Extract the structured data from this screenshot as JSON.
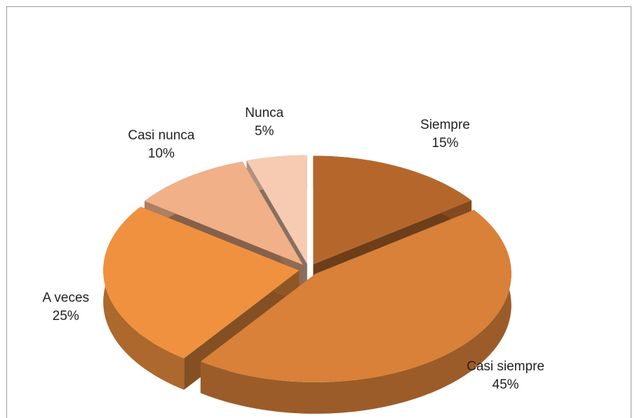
{
  "chart_data": {
    "type": "pie",
    "categories": [
      "Siempre",
      "Casi siempre",
      "A veces",
      "Casi nunca",
      "Nunca"
    ],
    "values": [
      15,
      45,
      25,
      10,
      5
    ],
    "value_labels": [
      "15%",
      "45%",
      "25%",
      "10%",
      "5%"
    ],
    "colors": [
      "#b5672b",
      "#d98039",
      "#f0913f",
      "#f2b088",
      "#f6cbb2"
    ]
  }
}
